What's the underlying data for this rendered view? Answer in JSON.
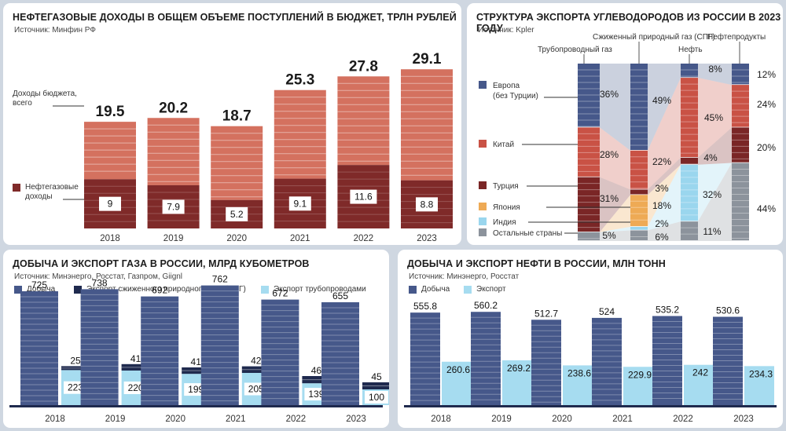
{
  "panel1": {
    "title": "НЕФТЕГАЗОВЫЕ ДОХОДЫ В ОБЩЕМ ОБЪЕМЕ ПОСТУПЛЕНИЙ В БЮДЖЕТ, ТРЛН РУБЛЕЙ",
    "source": "Источник: Минфин РФ",
    "legend_total": "Доходы бюджета, всего",
    "legend_og": "Нефтегазовые доходы"
  },
  "panel2": {
    "title": "СТРУКТУРА ЭКСПОРТА УГЛЕВОДОРОДОВ ИЗ РОССИИ В 2023 ГОДУ",
    "source": "Источник: Kpler"
  },
  "panel3": {
    "title": "ДОБЫЧА И ЭКСПОРТ ГАЗА В РОССИИ, МЛРД КУБОМЕТРОВ",
    "source": "Источник: Минэнерго, Росстат, Газпром, Giignl"
  },
  "panel4": {
    "title": "ДОБЫЧА И ЭКСПОРТ НЕФТИ В РОССИИ, МЛН ТОНН",
    "source": "Источник: Минэнерго, Росстат"
  },
  "colors": {
    "revenue_light": "#d4715f",
    "revenue_dark": "#7f2a29",
    "production": "#46588a",
    "lng": "#1f2a4e",
    "pipeline": "#a6dcf0",
    "europe": "#46588a",
    "china": "#c95245",
    "turkey": "#7a2626",
    "japan": "#eeaa55",
    "india": "#9ad6ee",
    "other": "#8c939c"
  },
  "chart_data": [
    {
      "type": "bar",
      "title": "НЕФТЕГАЗОВЫЕ ДОХОДЫ В ОБЩЕМ ОБЪЕМЕ ПОСТУПЛЕНИЙ В БЮДЖЕТ, ТРЛН РУБЛЕЙ",
      "categories": [
        "2018",
        "2019",
        "2020",
        "2021",
        "2022",
        "2023"
      ],
      "series": [
        {
          "name": "Доходы бюджета, всего",
          "values": [
            19.5,
            20.2,
            18.7,
            25.3,
            27.8,
            29.1
          ],
          "labels": [
            "19.5",
            "20.2",
            "18.7",
            "25.3",
            "27.8",
            "29.1"
          ]
        },
        {
          "name": "Нефтегазовые доходы",
          "values": [
            9,
            7.9,
            5.2,
            9.1,
            11.6,
            8.8
          ],
          "labels": [
            "9",
            "7.9",
            "5.2",
            "9.1",
            "11.6",
            "8.8"
          ]
        }
      ],
      "ylim": [
        0,
        31
      ]
    },
    {
      "type": "bar",
      "stacked": true,
      "title": "СТРУКТУРА ЭКСПОРТА УГЛЕВОДОРОДОВ ИЗ РОССИИ В 2023 ГОДУ",
      "categories": [
        "Трубопроводный газ",
        "Сжиженный природный газ (СПГ)",
        "Нефть",
        "Нефтепродукты"
      ],
      "series": [
        {
          "name": "Европа (без Турции)",
          "values": [
            36,
            49,
            8,
            12
          ]
        },
        {
          "name": "Китай",
          "values": [
            28,
            22,
            45,
            24
          ]
        },
        {
          "name": "Турция",
          "values": [
            31,
            3,
            4,
            20
          ]
        },
        {
          "name": "Япония",
          "values": [
            0,
            18,
            0,
            0
          ]
        },
        {
          "name": "Индия",
          "values": [
            0,
            2,
            32,
            0
          ]
        },
        {
          "name": "Остальные страны",
          "values": [
            5,
            6,
            11,
            44
          ]
        }
      ],
      "labels": {
        "pipe": [
          "36%",
          "28%",
          "31%",
          "5%"
        ],
        "lng": [
          "49%",
          "22%",
          "3%",
          "18%",
          "2%",
          "6%"
        ],
        "oil": [
          "8%",
          "45%",
          "4%",
          "32%",
          "11%"
        ],
        "prod": [
          "12%",
          "24%",
          "20%",
          "44%"
        ]
      },
      "legend": {
        "europe": "Европа (без Турции)",
        "china": "Китай",
        "turkey": "Турция",
        "japan": "Япония",
        "india": "Индия",
        "other": "Остальные страны"
      },
      "ylim": [
        0,
        100
      ]
    },
    {
      "type": "bar",
      "title": "ДОБЫЧА И ЭКСПОРТ ГАЗА В РОССИИ, МЛРД КУБОМЕТРОВ",
      "categories": [
        "2018",
        "2019",
        "2020",
        "2021",
        "2022",
        "2023"
      ],
      "series": [
        {
          "name": "Добыча",
          "values": [
            725,
            738,
            692,
            762,
            672,
            655
          ],
          "labels": [
            "725",
            "738",
            "692",
            "762",
            "672",
            "655"
          ]
        },
        {
          "name": "Экспорт сжиженного природного газа (СПГ)",
          "values": [
            25,
            41,
            41,
            42,
            46,
            45
          ],
          "labels": [
            "25",
            "41",
            "41",
            "42",
            "46",
            "45"
          ]
        },
        {
          "name": "Экспорт трубопроводами",
          "values": [
            223,
            220,
            199,
            205,
            139,
            100
          ],
          "labels": [
            "223",
            "220",
            "199",
            "205",
            "139",
            "100"
          ]
        }
      ],
      "ylim": [
        0,
        800
      ]
    },
    {
      "type": "bar",
      "title": "ДОБЫЧА И ЭКСПОРТ НЕФТИ В РОССИИ, МЛН ТОНН",
      "categories": [
        "2018",
        "2019",
        "2020",
        "2021",
        "2022",
        "2023"
      ],
      "series": [
        {
          "name": "Добыча",
          "values": [
            555.8,
            560.2,
            512.7,
            524,
            535.2,
            530.6
          ],
          "labels": [
            "555.8",
            "560.2",
            "512.7",
            "524",
            "535.2",
            "530.6"
          ]
        },
        {
          "name": "Экспорт",
          "values": [
            260.6,
            269.2,
            238.6,
            229.9,
            242,
            234.3
          ],
          "labels": [
            "260.6",
            "269.2",
            "238.6",
            "229.9",
            "242",
            "234.3"
          ]
        }
      ],
      "ylim": [
        0,
        600
      ]
    }
  ]
}
